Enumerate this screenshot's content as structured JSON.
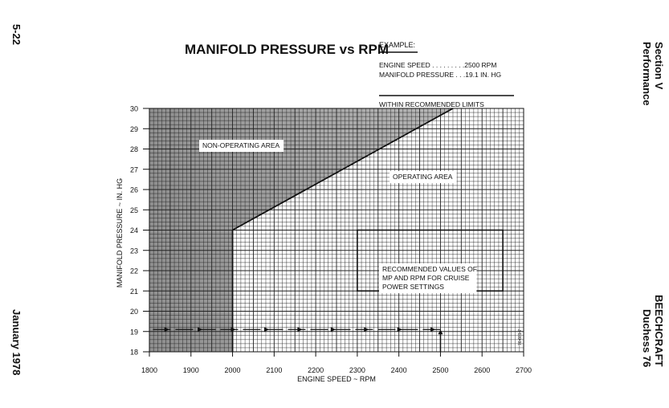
{
  "page": {
    "page_number": "5-22",
    "date": "January 1978",
    "section": "Section V",
    "section_name": "Performance",
    "brand": "BEECHCRAFT",
    "model": "Duchess 76"
  },
  "chart_data": {
    "type": "line",
    "title": "MANIFOLD PRESSURE vs RPM",
    "xlabel": "ENGINE SPEED ~ RPM",
    "ylabel": "MANIFOLD PRESSURE ~ IN. HG",
    "xlim": [
      1800,
      2700
    ],
    "ylim": [
      18,
      30
    ],
    "xticks": [
      1800,
      1900,
      2000,
      2100,
      2200,
      2300,
      2400,
      2500,
      2600,
      2700
    ],
    "yticks": [
      18,
      19,
      20,
      21,
      22,
      23,
      24,
      25,
      26,
      27,
      28,
      29,
      30
    ],
    "grid": true,
    "boundary_line": {
      "x": [
        2000,
        2000,
        2530
      ],
      "y": [
        18,
        24,
        30
      ]
    },
    "recommended_box": {
      "x": [
        2300,
        2650
      ],
      "y": [
        21,
        24
      ]
    },
    "example_path": {
      "x": [
        2500,
        2500,
        1800
      ],
      "y": [
        18,
        19.1,
        19.1
      ]
    },
    "region_labels": {
      "non_operating": "NON-OPERATING AREA",
      "operating": "OPERATING AREA",
      "recommended": [
        "RECOMMENDED VALUES OF",
        "MP AND RPM FOR CRUISE",
        "POWER SETTINGS"
      ]
    },
    "example": {
      "heading": "EXAMPLE:",
      "engine_speed": "ENGINE SPEED . . . . . . . . .2500 RPM",
      "manifold_pressure": "MANIFOLD PRESSURE . . .19.1 IN. HG",
      "result": "WITHIN RECOMMENDED LIMITS"
    },
    "figure_id": "76-601-7",
    "colors": {
      "shade": "#9a9a9a",
      "ink": "#111111"
    }
  }
}
